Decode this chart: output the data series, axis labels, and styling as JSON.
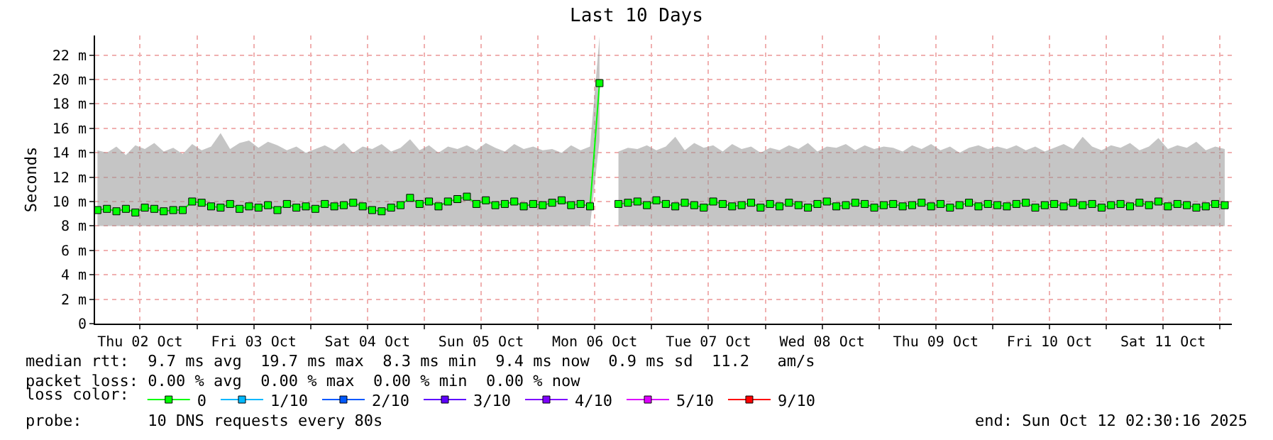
{
  "chart_data": {
    "type": "line",
    "title": "Last 10 Days",
    "ylabel": "Seconds",
    "legend_title": "loss color:",
    "legend": "bottom",
    "grid": true,
    "marker": "square",
    "line_style": "solid",
    "xlim": [
      "2025-10-02T02:30",
      "2025-10-12T02:30"
    ],
    "xticks": [
      {
        "value": "2025-10-02T12:00",
        "label": "Thu 02 Oct"
      },
      {
        "value": "2025-10-03",
        "label": null
      },
      {
        "value": "2025-10-03T12:00",
        "label": "Fri 03 Oct"
      },
      {
        "value": "2025-10-04",
        "label": null
      },
      {
        "value": "2025-10-04T12:00",
        "label": "Sat 04 Oct"
      },
      {
        "value": "2025-10-05",
        "label": null
      },
      {
        "value": "2025-10-05T12:00",
        "label": "Sun 05 Oct"
      },
      {
        "value": "2025-10-06",
        "label": null
      },
      {
        "value": "2025-10-06T12:00",
        "label": "Mon 06 Oct"
      },
      {
        "value": "2025-10-07",
        "label": null
      },
      {
        "value": "2025-10-07T12:00",
        "label": "Tue 07 Oct"
      },
      {
        "value": "2025-10-08",
        "label": null
      },
      {
        "value": "2025-10-08T12:00",
        "label": "Wed 08 Oct"
      },
      {
        "value": "2025-10-09",
        "label": null
      },
      {
        "value": "2025-10-09T12:00",
        "label": "Thu 09 Oct"
      },
      {
        "value": "2025-10-10",
        "label": null
      },
      {
        "value": "2025-10-10T12:00",
        "label": "Fri 10 Oct"
      },
      {
        "value": "2025-10-11",
        "label": null
      },
      {
        "value": "2025-10-11T12:00",
        "label": "Sat 11 Oct"
      },
      {
        "value": "2025-10-12",
        "label": null
      }
    ],
    "ylim": [
      0,
      23.6
    ],
    "yticks": [
      0,
      {
        "value": 2,
        "label": "2 m"
      },
      {
        "value": 4,
        "label": "4 m"
      },
      {
        "value": 6,
        "label": "6 m"
      },
      {
        "value": 8,
        "label": "8 m"
      },
      {
        "value": 10,
        "label": "10 m"
      },
      {
        "value": 12,
        "label": "12 m"
      },
      {
        "value": 14,
        "label": "14 m"
      },
      {
        "value": 16,
        "label": "16 m"
      },
      {
        "value": 18,
        "label": "18 m"
      },
      {
        "value": 20,
        "label": "20 m"
      },
      {
        "value": 22,
        "label": "22 m"
      }
    ],
    "x": [
      "2025-10-02T03:00",
      "2025-10-02T05:00",
      "2025-10-02T07:00",
      "2025-10-02T09:00",
      "2025-10-02T11:00",
      "2025-10-02T13:00",
      "2025-10-02T15:00",
      "2025-10-02T17:00",
      "2025-10-02T19:00",
      "2025-10-02T21:00",
      "2025-10-02T23:00",
      "2025-10-03T01:00",
      "2025-10-03T03:00",
      "2025-10-03T05:00",
      "2025-10-03T07:00",
      "2025-10-03T09:00",
      "2025-10-03T11:00",
      "2025-10-03T13:00",
      "2025-10-03T15:00",
      "2025-10-03T17:00",
      "2025-10-03T19:00",
      "2025-10-03T21:00",
      "2025-10-03T23:00",
      "2025-10-04T01:00",
      "2025-10-04T03:00",
      "2025-10-04T05:00",
      "2025-10-04T07:00",
      "2025-10-04T09:00",
      "2025-10-04T11:00",
      "2025-10-04T13:00",
      "2025-10-04T15:00",
      "2025-10-04T17:00",
      "2025-10-04T19:00",
      "2025-10-04T21:00",
      "2025-10-04T23:00",
      "2025-10-05T01:00",
      "2025-10-05T03:00",
      "2025-10-05T05:00",
      "2025-10-05T07:00",
      "2025-10-05T09:00",
      "2025-10-05T11:00",
      "2025-10-05T13:00",
      "2025-10-05T15:00",
      "2025-10-05T17:00",
      "2025-10-05T19:00",
      "2025-10-05T21:00",
      "2025-10-05T23:00",
      "2025-10-06T01:00",
      "2025-10-06T03:00",
      "2025-10-06T05:00",
      "2025-10-06T07:00",
      "2025-10-06T09:00",
      "2025-10-06T11:00",
      "2025-10-06T13:00",
      "2025-10-06T15:00",
      "2025-10-06T17:00",
      "2025-10-06T19:00",
      "2025-10-06T21:00",
      "2025-10-06T23:00",
      "2025-10-07T01:00",
      "2025-10-07T03:00",
      "2025-10-07T05:00",
      "2025-10-07T07:00",
      "2025-10-07T09:00",
      "2025-10-07T11:00",
      "2025-10-07T13:00",
      "2025-10-07T15:00",
      "2025-10-07T17:00",
      "2025-10-07T19:00",
      "2025-10-07T21:00",
      "2025-10-07T23:00",
      "2025-10-08T01:00",
      "2025-10-08T03:00",
      "2025-10-08T05:00",
      "2025-10-08T07:00",
      "2025-10-08T09:00",
      "2025-10-08T11:00",
      "2025-10-08T13:00",
      "2025-10-08T15:00",
      "2025-10-08T17:00",
      "2025-10-08T19:00",
      "2025-10-08T21:00",
      "2025-10-08T23:00",
      "2025-10-09T01:00",
      "2025-10-09T03:00",
      "2025-10-09T05:00",
      "2025-10-09T07:00",
      "2025-10-09T09:00",
      "2025-10-09T11:00",
      "2025-10-09T13:00",
      "2025-10-09T15:00",
      "2025-10-09T17:00",
      "2025-10-09T19:00",
      "2025-10-09T21:00",
      "2025-10-09T23:00",
      "2025-10-10T01:00",
      "2025-10-10T03:00",
      "2025-10-10T05:00",
      "2025-10-10T07:00",
      "2025-10-10T09:00",
      "2025-10-10T11:00",
      "2025-10-10T13:00",
      "2025-10-10T15:00",
      "2025-10-10T17:00",
      "2025-10-10T19:00",
      "2025-10-10T21:00",
      "2025-10-10T23:00",
      "2025-10-11T01:00",
      "2025-10-11T03:00",
      "2025-10-11T05:00",
      "2025-10-11T07:00",
      "2025-10-11T09:00",
      "2025-10-11T11:00",
      "2025-10-11T13:00",
      "2025-10-11T15:00",
      "2025-10-11T17:00",
      "2025-10-11T19:00",
      "2025-10-11T21:00",
      "2025-10-11T23:00",
      "2025-10-12T01:00"
    ],
    "series": [
      {
        "name": "0",
        "color": "#00ff00",
        "values": [
          9.3,
          9.4,
          9.2,
          9.4,
          9.1,
          9.5,
          9.4,
          9.2,
          9.3,
          9.3,
          10.0,
          9.9,
          9.6,
          9.5,
          9.8,
          9.4,
          9.6,
          9.5,
          9.7,
          9.3,
          9.8,
          9.5,
          9.6,
          9.4,
          9.8,
          9.6,
          9.7,
          9.9,
          9.6,
          9.3,
          9.2,
          9.5,
          9.7,
          10.3,
          9.8,
          10.0,
          9.6,
          10.0,
          10.2,
          10.4,
          9.8,
          10.1,
          9.7,
          9.8,
          10.0,
          9.6,
          9.8,
          9.7,
          9.9,
          10.1,
          9.7,
          9.8,
          9.6,
          19.7,
          null,
          9.8,
          9.9,
          10.0,
          9.7,
          10.1,
          9.8,
          9.6,
          9.9,
          9.7,
          9.5,
          10.0,
          9.8,
          9.6,
          9.7,
          9.9,
          9.5,
          9.8,
          9.6,
          9.9,
          9.7,
          9.5,
          9.8,
          10.0,
          9.6,
          9.7,
          9.9,
          9.8,
          9.5,
          9.7,
          9.8,
          9.6,
          9.7,
          9.9,
          9.6,
          9.8,
          9.5,
          9.7,
          9.9,
          9.6,
          9.8,
          9.7,
          9.6,
          9.8,
          9.9,
          9.5,
          9.7,
          9.8,
          9.6,
          9.9,
          9.7,
          9.8,
          9.5,
          9.7,
          9.8,
          9.6,
          9.9,
          9.7,
          10.0,
          9.6,
          9.8,
          9.7,
          9.5,
          9.6,
          9.8,
          9.7
        ],
        "lower": [
          8,
          8,
          8,
          8,
          8,
          8,
          8,
          8,
          8,
          8,
          8,
          8,
          8,
          8,
          8,
          8,
          8,
          8,
          8,
          8,
          8,
          8,
          8,
          8,
          8,
          8,
          8,
          8,
          8,
          8,
          8,
          8,
          8,
          8,
          8,
          8,
          8,
          8,
          8,
          8,
          8,
          8,
          8,
          8,
          8,
          8,
          8,
          8,
          8,
          8,
          8,
          8,
          8,
          15,
          null,
          8,
          8,
          8,
          8,
          8,
          8,
          8,
          8,
          8,
          8,
          8,
          8,
          8,
          8,
          8,
          8,
          8,
          8,
          8,
          8,
          8,
          8,
          8,
          8,
          8,
          8,
          8,
          8,
          8,
          8,
          8,
          8,
          8,
          8,
          8,
          8,
          8,
          8,
          8,
          8,
          8,
          8,
          8,
          8,
          8,
          8,
          8,
          8,
          8,
          8,
          8,
          8,
          8,
          8,
          8,
          8,
          8,
          8,
          8,
          8,
          8,
          8,
          8,
          8,
          8
        ],
        "upper": [
          14.2,
          14.0,
          14.5,
          13.8,
          14.6,
          14.3,
          14.8,
          14.1,
          14.4,
          13.9,
          14.7,
          14.2,
          14.5,
          15.6,
          14.3,
          14.8,
          15.0,
          14.4,
          14.9,
          14.6,
          14.2,
          14.5,
          14.0,
          14.3,
          14.6,
          14.2,
          14.8,
          14.0,
          14.5,
          14.3,
          14.7,
          14.1,
          14.4,
          15.1,
          14.2,
          14.6,
          14.0,
          14.5,
          14.3,
          14.6,
          14.2,
          14.8,
          14.4,
          14.1,
          14.7,
          14.3,
          14.5,
          14.2,
          14.3,
          14.0,
          14.6,
          14.2,
          14.5,
          23.5,
          null,
          14.1,
          14.4,
          14.3,
          14.6,
          14.2,
          14.5,
          15.3,
          14.2,
          14.8,
          14.4,
          14.6,
          14.1,
          14.7,
          14.3,
          14.5,
          14.0,
          14.4,
          14.2,
          14.6,
          14.3,
          14.8,
          14.1,
          14.5,
          14.4,
          14.7,
          14.2,
          14.6,
          14.3,
          14.5,
          14.4,
          14.1,
          14.6,
          14.3,
          14.7,
          14.2,
          14.5,
          14.0,
          14.4,
          14.6,
          14.3,
          14.5,
          14.3,
          14.6,
          14.2,
          14.5,
          14.1,
          14.4,
          14.7,
          14.3,
          15.3,
          14.5,
          14.2,
          14.6,
          14.4,
          14.8,
          14.2,
          14.5,
          15.2,
          14.3,
          14.6,
          14.4,
          14.9,
          14.2,
          14.5,
          14.3
        ]
      },
      {
        "name": "1/10",
        "color": "#00b8ff",
        "values": [
          null,
          null,
          null,
          null,
          null,
          null,
          null,
          null,
          null,
          null,
          null,
          null,
          null,
          null,
          null,
          null,
          null,
          null,
          null,
          null,
          null,
          null,
          null,
          null,
          null,
          null,
          null,
          null,
          null,
          null,
          null,
          null,
          null,
          null,
          null,
          null,
          null,
          null,
          null,
          null,
          null,
          null,
          null,
          null,
          null,
          null,
          null,
          null,
          null,
          null,
          null,
          null,
          null,
          null,
          null,
          null,
          null,
          null,
          null,
          null,
          null,
          null,
          null,
          null,
          null,
          null,
          null,
          null,
          null,
          null,
          null,
          null,
          null,
          null,
          null,
          null,
          null,
          null,
          null,
          null,
          null,
          null,
          null,
          null,
          null,
          null,
          null,
          null,
          null,
          null,
          null,
          null,
          null,
          null,
          null,
          null,
          null,
          null,
          null,
          null,
          null,
          null,
          null,
          null,
          null,
          null,
          null,
          null,
          null,
          null,
          null,
          null,
          null,
          null,
          null,
          null,
          null,
          null,
          null,
          null
        ]
      },
      {
        "name": "2/10",
        "color": "#0059ff",
        "values": [
          null,
          null,
          null,
          null,
          null,
          null,
          null,
          null,
          null,
          null,
          null,
          null,
          null,
          null,
          null,
          null,
          null,
          null,
          null,
          null,
          null,
          null,
          null,
          null,
          null,
          null,
          null,
          null,
          null,
          null,
          null,
          null,
          null,
          null,
          null,
          null,
          null,
          null,
          null,
          null,
          null,
          null,
          null,
          null,
          null,
          null,
          null,
          null,
          null,
          null,
          null,
          null,
          null,
          null,
          null,
          null,
          null,
          null,
          null,
          null,
          null,
          null,
          null,
          null,
          null,
          null,
          null,
          null,
          null,
          null,
          null,
          null,
          null,
          null,
          null,
          null,
          null,
          null,
          null,
          null,
          null,
          null,
          null,
          null,
          null,
          null,
          null,
          null,
          null,
          null,
          null,
          null,
          null,
          null,
          null,
          null,
          null,
          null,
          null,
          null,
          null,
          null,
          null,
          null,
          null,
          null,
          null,
          null,
          null,
          null,
          null,
          null,
          null,
          null,
          null,
          null,
          null,
          null,
          null,
          null
        ]
      },
      {
        "name": "3/10",
        "color": "#5e00ff",
        "values": [
          null,
          null,
          null,
          null,
          null,
          null,
          null,
          null,
          null,
          null,
          null,
          null,
          null,
          null,
          null,
          null,
          null,
          null,
          null,
          null,
          null,
          null,
          null,
          null,
          null,
          null,
          null,
          null,
          null,
          null,
          null,
          null,
          null,
          null,
          null,
          null,
          null,
          null,
          null,
          null,
          null,
          null,
          null,
          null,
          null,
          null,
          null,
          null,
          null,
          null,
          null,
          null,
          null,
          null,
          null,
          null,
          null,
          null,
          null,
          null,
          null,
          null,
          null,
          null,
          null,
          null,
          null,
          null,
          null,
          null,
          null,
          null,
          null,
          null,
          null,
          null,
          null,
          null,
          null,
          null,
          null,
          null,
          null,
          null,
          null,
          null,
          null,
          null,
          null,
          null,
          null,
          null,
          null,
          null,
          null,
          null,
          null,
          null,
          null,
          null,
          null,
          null,
          null,
          null,
          null,
          null,
          null,
          null,
          null,
          null,
          null,
          null,
          null,
          null,
          null,
          null,
          null,
          null,
          null,
          null
        ]
      },
      {
        "name": "4/10",
        "color": "#7e00ff",
        "values": [
          null,
          null,
          null,
          null,
          null,
          null,
          null,
          null,
          null,
          null,
          null,
          null,
          null,
          null,
          null,
          null,
          null,
          null,
          null,
          null,
          null,
          null,
          null,
          null,
          null,
          null,
          null,
          null,
          null,
          null,
          null,
          null,
          null,
          null,
          null,
          null,
          null,
          null,
          null,
          null,
          null,
          null,
          null,
          null,
          null,
          null,
          null,
          null,
          null,
          null,
          null,
          null,
          null,
          null,
          null,
          null,
          null,
          null,
          null,
          null,
          null,
          null,
          null,
          null,
          null,
          null,
          null,
          null,
          null,
          null,
          null,
          null,
          null,
          null,
          null,
          null,
          null,
          null,
          null,
          null,
          null,
          null,
          null,
          null,
          null,
          null,
          null,
          null,
          null,
          null,
          null,
          null,
          null,
          null,
          null,
          null,
          null,
          null,
          null,
          null,
          null,
          null,
          null,
          null,
          null,
          null,
          null,
          null,
          null,
          null,
          null,
          null,
          null,
          null,
          null,
          null,
          null,
          null,
          null,
          null
        ]
      },
      {
        "name": "5/10",
        "color": "#dd00ff",
        "values": [
          null,
          null,
          null,
          null,
          null,
          null,
          null,
          null,
          null,
          null,
          null,
          null,
          null,
          null,
          null,
          null,
          null,
          null,
          null,
          null,
          null,
          null,
          null,
          null,
          null,
          null,
          null,
          null,
          null,
          null,
          null,
          null,
          null,
          null,
          null,
          null,
          null,
          null,
          null,
          null,
          null,
          null,
          null,
          null,
          null,
          null,
          null,
          null,
          null,
          null,
          null,
          null,
          null,
          null,
          null,
          null,
          null,
          null,
          null,
          null,
          null,
          null,
          null,
          null,
          null,
          null,
          null,
          null,
          null,
          null,
          null,
          null,
          null,
          null,
          null,
          null,
          null,
          null,
          null,
          null,
          null,
          null,
          null,
          null,
          null,
          null,
          null,
          null,
          null,
          null,
          null,
          null,
          null,
          null,
          null,
          null,
          null,
          null,
          null,
          null,
          null,
          null,
          null,
          null,
          null,
          null,
          null,
          null,
          null,
          null,
          null,
          null,
          null,
          null,
          null,
          null,
          null,
          null,
          null,
          null
        ]
      },
      {
        "name": "9/10",
        "color": "#ff0000",
        "values": [
          null,
          null,
          null,
          null,
          null,
          null,
          null,
          null,
          null,
          null,
          null,
          null,
          null,
          null,
          null,
          null,
          null,
          null,
          null,
          null,
          null,
          null,
          null,
          null,
          null,
          null,
          null,
          null,
          null,
          null,
          null,
          null,
          null,
          null,
          null,
          null,
          null,
          null,
          null,
          null,
          null,
          null,
          null,
          null,
          null,
          null,
          null,
          null,
          null,
          null,
          null,
          null,
          null,
          null,
          null,
          null,
          null,
          null,
          null,
          null,
          null,
          null,
          null,
          null,
          null,
          null,
          null,
          null,
          null,
          null,
          null,
          null,
          null,
          null,
          null,
          null,
          null,
          null,
          null,
          null,
          null,
          null,
          null,
          null,
          null,
          null,
          null,
          null,
          null,
          null,
          null,
          null,
          null,
          null,
          null,
          null,
          null,
          null,
          null,
          null,
          null,
          null,
          null,
          null,
          null,
          null,
          null,
          null,
          null,
          null,
          null,
          null,
          null,
          null,
          null,
          null,
          null,
          null,
          null,
          null
        ]
      }
    ],
    "annotations": [
      "median rtt:  9.7 ms avg  19.7 ms max  8.3 ms min  9.4 ms now  0.9 ms sd  11.2   am/s",
      "packet loss: 0.00 % avg  0.00 % max  0.00 % min  0.00 % now",
      "probe:       10 DNS requests every 80s",
      "end: Sun Oct 12 02:30:16 2025"
    ]
  }
}
